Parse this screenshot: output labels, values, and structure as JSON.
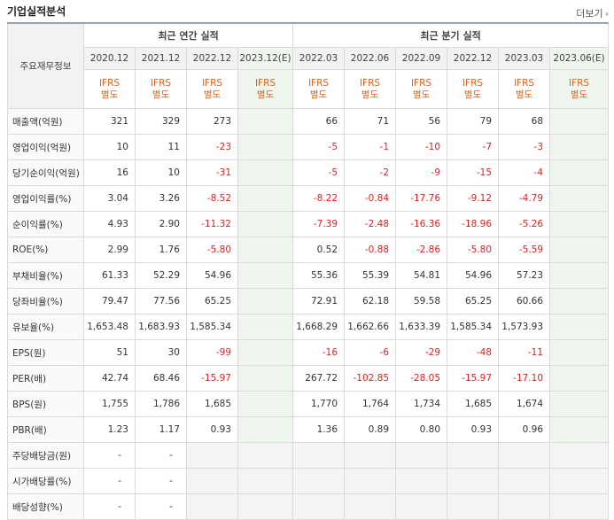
{
  "header": {
    "title": "기업실적분석",
    "more_label": "더보기",
    "more_icon": "chevron-right-icon"
  },
  "table": {
    "corner_label": "주요재무정보",
    "group_annual": "최근 연간 실적",
    "group_quarterly": "최근 분기 실적",
    "annual_periods": [
      "2020.12",
      "2021.12",
      "2022.12",
      "2023.12(E)"
    ],
    "quarterly_periods": [
      "2022.03",
      "2022.06",
      "2022.09",
      "2022.12",
      "2023.03",
      "2023.06(E)"
    ],
    "ifrs_line1": "IFRS",
    "ifrs_line2": "별도",
    "rows": [
      {
        "label": "매출액(억원)",
        "annual": [
          "321",
          "329",
          "273",
          ""
        ],
        "quarterly": [
          "66",
          "71",
          "56",
          "79",
          "68",
          ""
        ]
      },
      {
        "label": "영업이익(억원)",
        "annual": [
          "10",
          "11",
          "-23",
          ""
        ],
        "quarterly": [
          "-5",
          "-1",
          "-10",
          "-7",
          "-3",
          ""
        ]
      },
      {
        "label": "당기순이익(억원)",
        "annual": [
          "16",
          "10",
          "-31",
          ""
        ],
        "quarterly": [
          "-5",
          "-2",
          "-9",
          "-15",
          "-4",
          ""
        ]
      },
      {
        "label": "영업이익률(%)",
        "annual": [
          "3.04",
          "3.26",
          "-8.52",
          ""
        ],
        "quarterly": [
          "-8.22",
          "-0.84",
          "-17.76",
          "-9.12",
          "-4.79",
          ""
        ]
      },
      {
        "label": "순이익률(%)",
        "annual": [
          "4.93",
          "2.90",
          "-11.32",
          ""
        ],
        "quarterly": [
          "-7.39",
          "-2.48",
          "-16.36",
          "-18.96",
          "-5.26",
          ""
        ]
      },
      {
        "label": "ROE(%)",
        "annual": [
          "2.99",
          "1.76",
          "-5.80",
          ""
        ],
        "quarterly": [
          "0.52",
          "-0.88",
          "-2.86",
          "-5.80",
          "-5.59",
          ""
        ]
      },
      {
        "label": "부채비율(%)",
        "annual": [
          "61.33",
          "52.29",
          "54.96",
          ""
        ],
        "quarterly": [
          "55.36",
          "55.39",
          "54.81",
          "54.96",
          "57.23",
          ""
        ]
      },
      {
        "label": "당좌비율(%)",
        "annual": [
          "79.47",
          "77.56",
          "65.25",
          ""
        ],
        "quarterly": [
          "72.91",
          "62.18",
          "59.58",
          "65.25",
          "60.66",
          ""
        ]
      },
      {
        "label": "유보율(%)",
        "annual": [
          "1,653.48",
          "1,683.93",
          "1,585.34",
          ""
        ],
        "quarterly": [
          "1,668.29",
          "1,662.66",
          "1,633.39",
          "1,585.34",
          "1,573.93",
          ""
        ]
      },
      {
        "label": "EPS(원)",
        "annual": [
          "51",
          "30",
          "-99",
          ""
        ],
        "quarterly": [
          "-16",
          "-6",
          "-29",
          "-48",
          "-11",
          ""
        ]
      },
      {
        "label": "PER(배)",
        "annual": [
          "42.74",
          "68.46",
          "-15.97",
          ""
        ],
        "quarterly": [
          "267.72",
          "-102.85",
          "-28.05",
          "-15.97",
          "-17.10",
          ""
        ]
      },
      {
        "label": "BPS(원)",
        "annual": [
          "1,755",
          "1,786",
          "1,685",
          ""
        ],
        "quarterly": [
          "1,770",
          "1,764",
          "1,734",
          "1,685",
          "1,674",
          ""
        ]
      },
      {
        "label": "PBR(배)",
        "annual": [
          "1.23",
          "1.17",
          "0.93",
          ""
        ],
        "quarterly": [
          "1.36",
          "0.89",
          "0.80",
          "0.93",
          "0.96",
          ""
        ]
      },
      {
        "label": "주당배당금(원)",
        "annual": [
          "-",
          "-",
          "",
          ""
        ],
        "quarterly": [
          "",
          "",
          "",
          "",
          "",
          ""
        ]
      },
      {
        "label": "시가배당률(%)",
        "annual": [
          "-",
          "-",
          "",
          ""
        ],
        "quarterly": [
          "",
          "",
          "",
          "",
          "",
          ""
        ]
      },
      {
        "label": "배당성향(%)",
        "annual": [
          "-",
          "-",
          "",
          ""
        ],
        "quarterly": [
          "",
          "",
          "",
          "",
          "",
          ""
        ]
      }
    ]
  },
  "colors": {
    "negative": "#e02020",
    "ifrs": "#e2621b",
    "estimate_bg": "#eef6ee"
  }
}
